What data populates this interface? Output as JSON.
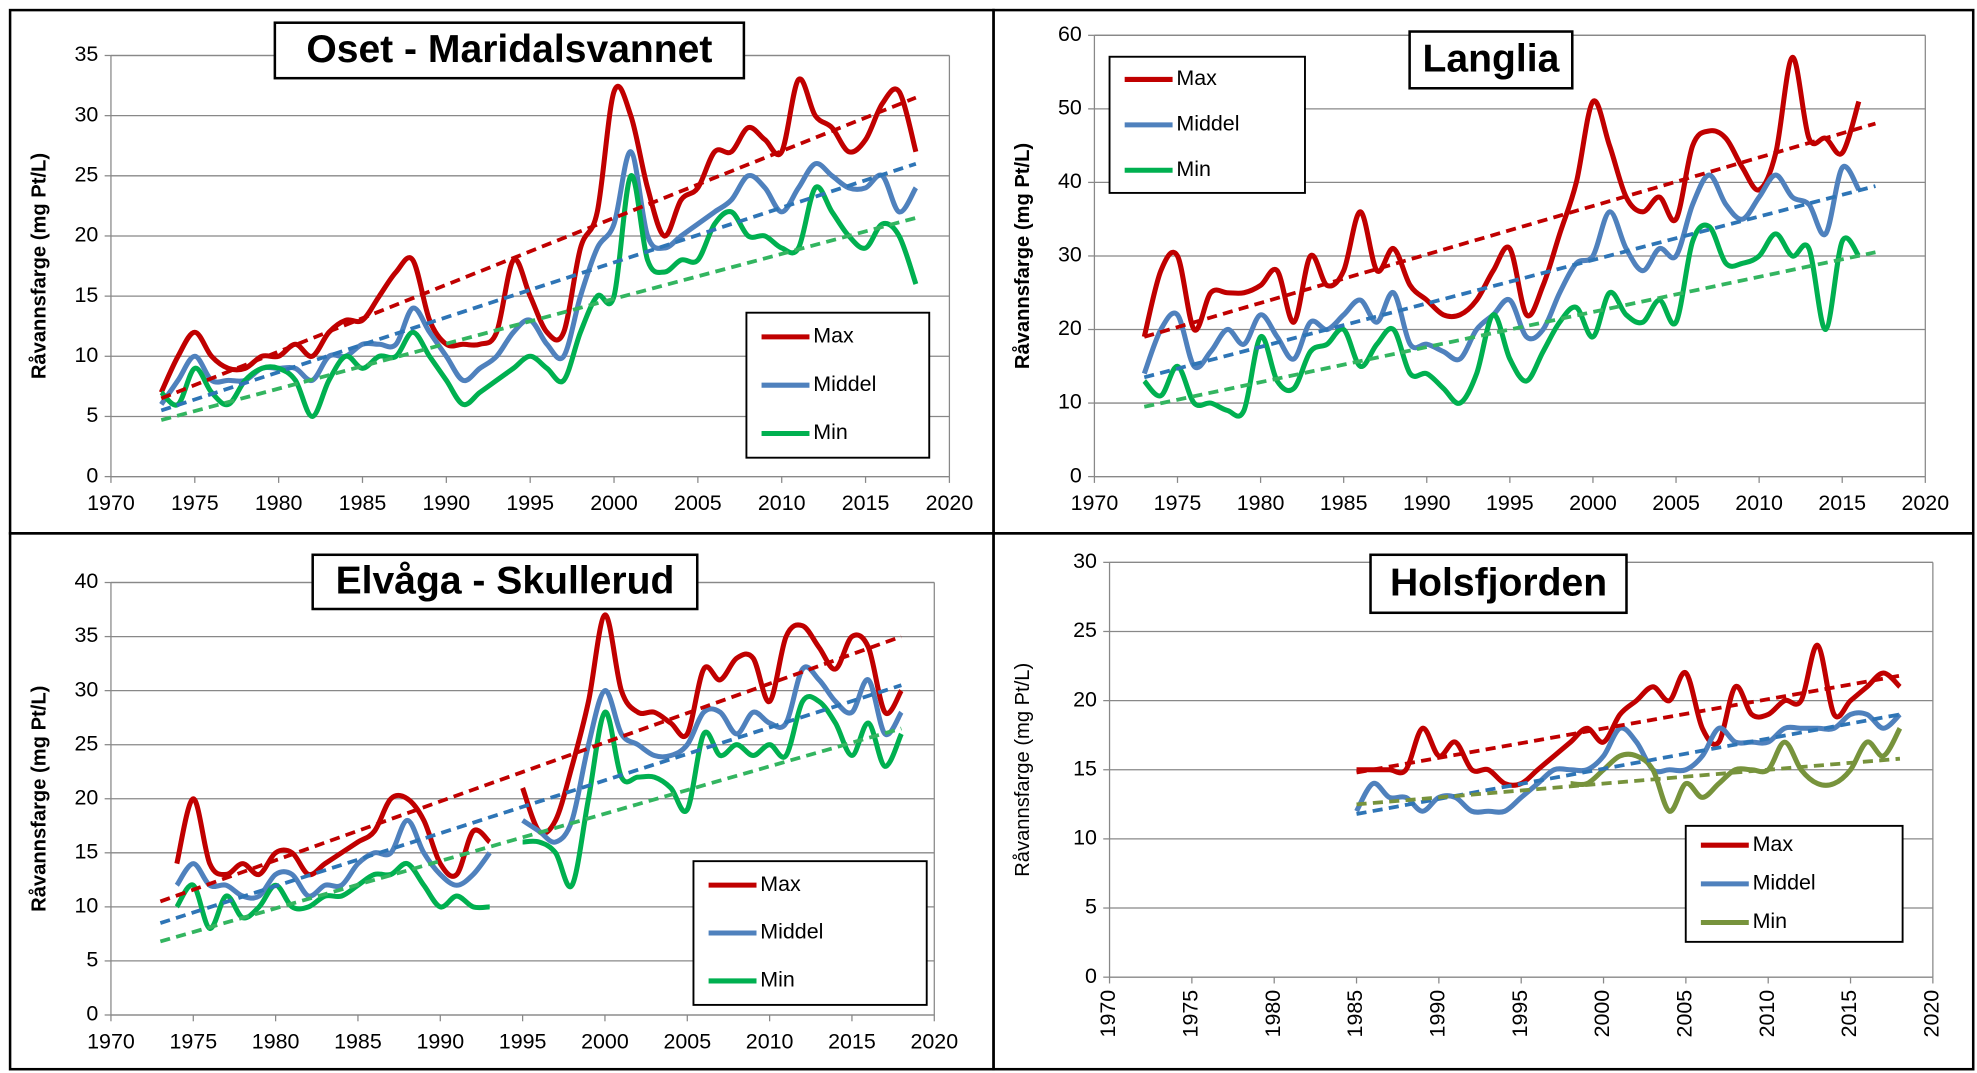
{
  "chart_data": [
    {
      "type": "line",
      "title": "Oset - Maridalsvannet",
      "y_label": "Råvannsfarge (mg Pt/L)",
      "x": [
        1973,
        1974,
        1975,
        1976,
        1977,
        1978,
        1979,
        1980,
        1981,
        1982,
        1983,
        1984,
        1985,
        1986,
        1987,
        1988,
        1989,
        1990,
        1991,
        1992,
        1993,
        1994,
        1995,
        1996,
        1997,
        1998,
        1999,
        2000,
        2001,
        2002,
        2003,
        2004,
        2005,
        2006,
        2007,
        2008,
        2009,
        2010,
        2011,
        2012,
        2013,
        2014,
        2015,
        2016,
        2017,
        2018
      ],
      "series": [
        {
          "name": "Max",
          "color": "#c00000",
          "values": [
            7,
            10,
            12,
            10,
            9,
            9,
            10,
            10,
            11,
            10,
            12,
            13,
            13,
            15,
            17,
            18,
            13,
            11,
            11,
            11,
            12,
            18,
            15,
            12,
            12,
            19,
            22,
            32,
            30,
            24,
            20,
            23,
            24,
            27,
            27,
            29,
            28,
            27,
            33,
            30,
            29,
            27,
            28,
            31,
            32,
            27
          ]
        },
        {
          "name": "Middel",
          "color": "#4f81bd",
          "values": [
            6,
            8,
            10,
            8,
            8,
            8,
            9,
            9,
            9,
            8,
            10,
            10,
            11,
            11,
            11,
            14,
            12,
            10,
            8,
            9,
            10,
            12,
            13,
            11,
            10,
            15,
            19,
            21,
            27,
            20,
            19,
            20,
            21,
            22,
            23,
            25,
            24,
            22,
            24,
            26,
            25,
            24,
            24,
            25,
            22,
            24
          ]
        },
        {
          "name": "Min",
          "color": "#00b050",
          "values": [
            7,
            6,
            9,
            7,
            6,
            8,
            9,
            9,
            8,
            5,
            8,
            10,
            9,
            10,
            10,
            12,
            10,
            8,
            6,
            7,
            8,
            9,
            10,
            9,
            8,
            12,
            15,
            15,
            25,
            18,
            17,
            18,
            18,
            21,
            22,
            20,
            20,
            19,
            19,
            24,
            22,
            20,
            19,
            21,
            20,
            16
          ]
        }
      ],
      "trends": [
        {
          "color": "#c00000",
          "x": [
            1973,
            2018
          ],
          "values": [
            6.5,
            31.5
          ]
        },
        {
          "color": "#2e75b6",
          "x": [
            1973,
            2018
          ],
          "values": [
            5.5,
            26
          ]
        },
        {
          "color": "#33b560",
          "x": [
            1973,
            2018
          ],
          "values": [
            4.7,
            21.5
          ]
        }
      ],
      "xlim": [
        1970,
        2020
      ],
      "xticks": [
        1970,
        1975,
        1980,
        1985,
        1990,
        1995,
        2000,
        2005,
        2010,
        2015,
        2020
      ],
      "ylim": [
        0,
        35
      ],
      "yticks": [
        0,
        5,
        10,
        15,
        20,
        25,
        30,
        35
      ],
      "grid": true,
      "legend": "lower right"
    },
    {
      "type": "line",
      "title": "Langlia",
      "y_label": "Råvannsfarge (mg Pt/L)",
      "x": [
        1973,
        1974,
        1975,
        1976,
        1977,
        1978,
        1979,
        1980,
        1981,
        1982,
        1983,
        1984,
        1985,
        1986,
        1987,
        1988,
        1989,
        1990,
        1991,
        1992,
        1993,
        1994,
        1995,
        1996,
        1997,
        1998,
        1999,
        2000,
        2001,
        2002,
        2003,
        2004,
        2005,
        2006,
        2007,
        2008,
        2009,
        2010,
        2011,
        2012,
        2013,
        2014,
        2015,
        2016
      ],
      "series": [
        {
          "name": "Max",
          "color": "#c00000",
          "values": [
            19,
            28,
            30,
            20,
            25,
            25,
            25,
            26,
            28,
            21,
            30,
            26,
            28,
            36,
            28,
            31,
            26,
            24,
            22,
            22,
            24,
            28,
            31,
            22,
            26,
            33,
            40,
            51,
            45,
            38,
            36,
            38,
            35,
            45,
            47,
            46,
            42,
            39,
            44,
            57,
            46,
            46,
            44,
            51
          ]
        },
        {
          "name": "Middel",
          "color": "#4f81bd",
          "values": [
            14,
            20,
            22,
            15,
            17,
            20,
            18,
            22,
            19,
            16,
            21,
            20,
            22,
            24,
            21,
            25,
            18,
            18,
            17,
            16,
            20,
            22,
            24,
            19,
            20,
            25,
            29,
            30,
            36,
            31,
            28,
            31,
            30,
            37,
            41,
            37,
            35,
            38,
            41,
            38,
            37,
            33,
            42,
            39
          ]
        },
        {
          "name": "Min",
          "color": "#00b050",
          "values": [
            13,
            11,
            15,
            10,
            10,
            9,
            9,
            19,
            13,
            12,
            17,
            18,
            20,
            15,
            18,
            20,
            14,
            14,
            12,
            10,
            14,
            22,
            16,
            13,
            17,
            21,
            23,
            19,
            25,
            22,
            21,
            24,
            21,
            32,
            34,
            29,
            29,
            30,
            33,
            30,
            31,
            20,
            32,
            30
          ]
        }
      ],
      "trends": [
        {
          "color": "#c00000",
          "x": [
            1973,
            2017
          ],
          "values": [
            19,
            48
          ]
        },
        {
          "color": "#2e75b6",
          "x": [
            1973,
            2017
          ],
          "values": [
            13.5,
            39.5
          ]
        },
        {
          "color": "#33b560",
          "x": [
            1973,
            2017
          ],
          "values": [
            9.5,
            30.5
          ]
        }
      ],
      "xlim": [
        1970,
        2020
      ],
      "xticks": [
        1970,
        1975,
        1980,
        1985,
        1990,
        1995,
        2000,
        2005,
        2010,
        2015,
        2020
      ],
      "ylim": [
        0,
        60
      ],
      "yticks": [
        0,
        10,
        20,
        30,
        40,
        50,
        60
      ],
      "grid": true,
      "legend": "upper left"
    },
    {
      "type": "line",
      "title": "Elvåga - Skullerud",
      "y_label": "Råvannsfarge (mg Pt/L)",
      "x": [
        1974,
        1975,
        1976,
        1977,
        1978,
        1979,
        1980,
        1981,
        1982,
        1983,
        1984,
        1985,
        1986,
        1987,
        1988,
        1989,
        1990,
        1991,
        1992,
        1993,
        1994,
        1995,
        1996,
        1997,
        1998,
        1999,
        2000,
        2001,
        2002,
        2003,
        2004,
        2005,
        2006,
        2007,
        2008,
        2009,
        2010,
        2011,
        2012,
        2013,
        2014,
        2015,
        2016,
        2017,
        2018
      ],
      "series": [
        {
          "name": "Max",
          "color": "#c00000",
          "values": [
            14,
            20,
            14,
            13,
            14,
            13,
            15,
            15,
            13,
            14,
            15,
            16,
            17,
            20,
            20,
            18,
            14,
            13,
            17,
            16,
            null,
            21,
            17,
            18,
            23,
            29,
            37,
            30,
            28,
            28,
            27,
            26,
            32,
            31,
            33,
            33,
            29,
            35,
            36,
            34,
            32,
            35,
            34,
            28,
            30
          ]
        },
        {
          "name": "Middel",
          "color": "#4f81bd",
          "values": [
            12,
            14,
            12,
            12,
            11,
            11,
            13,
            13,
            11,
            12,
            12,
            14,
            15,
            15,
            18,
            15,
            13,
            12,
            13,
            15,
            null,
            18,
            17,
            16,
            18,
            25,
            30,
            26,
            25,
            24,
            24,
            25,
            28,
            28,
            26,
            28,
            27,
            27,
            32,
            31,
            29,
            28,
            31,
            26,
            28
          ]
        },
        {
          "name": "Min",
          "color": "#00b050",
          "values": [
            10,
            12,
            8,
            11,
            9,
            10,
            12,
            10,
            10,
            11,
            11,
            12,
            13,
            13,
            14,
            12,
            10,
            11,
            10,
            10,
            null,
            16,
            16,
            15,
            12,
            20,
            28,
            22,
            22,
            22,
            21,
            19,
            26,
            24,
            25,
            24,
            25,
            24,
            29,
            29,
            27,
            24,
            27,
            23,
            26
          ]
        }
      ],
      "trends": [
        {
          "color": "#c00000",
          "x": [
            1973,
            2018
          ],
          "values": [
            10.5,
            35
          ]
        },
        {
          "color": "#2e75b6",
          "x": [
            1973,
            2018
          ],
          "values": [
            8.5,
            30.5
          ]
        },
        {
          "color": "#33b560",
          "x": [
            1973,
            2018
          ],
          "values": [
            6.8,
            26.5
          ]
        }
      ],
      "xlim": [
        1970,
        2020
      ],
      "xticks": [
        1970,
        1975,
        1980,
        1985,
        1990,
        1995,
        2000,
        2005,
        2010,
        2015,
        2020
      ],
      "ylim": [
        0,
        40
      ],
      "yticks": [
        0,
        5,
        10,
        15,
        20,
        25,
        30,
        35,
        40
      ],
      "grid": true,
      "legend": "lower right"
    },
    {
      "type": "line",
      "title": "Holsfjorden",
      "y_label": "Råvannsfarge (mg Pt/L)",
      "x": [
        1985,
        1986,
        1987,
        1988,
        1989,
        1990,
        1991,
        1992,
        1993,
        1994,
        1995,
        1996,
        1997,
        1998,
        1999,
        2000,
        2001,
        2002,
        2003,
        2004,
        2005,
        2006,
        2007,
        2008,
        2009,
        2010,
        2011,
        2012,
        2013,
        2014,
        2015,
        2016,
        2017,
        2018
      ],
      "series": [
        {
          "name": "Max",
          "color": "#c00000",
          "values": [
            15,
            15,
            15,
            15,
            18,
            16,
            17,
            15,
            15,
            14,
            14,
            15,
            16,
            17,
            18,
            17,
            19,
            20,
            21,
            20,
            22,
            18,
            17,
            21,
            19,
            19,
            20,
            20,
            24,
            19,
            20,
            21,
            22,
            21
          ]
        },
        {
          "name": "Middel",
          "color": "#4f81bd",
          "values": [
            12,
            14,
            13,
            13,
            12,
            13,
            13,
            12,
            12,
            12,
            13,
            14,
            15,
            15,
            15,
            16,
            18,
            17,
            15,
            15,
            15,
            16,
            18,
            17,
            17,
            17,
            18,
            18,
            18,
            18,
            19,
            19,
            18,
            19
          ]
        },
        {
          "name": "Min",
          "color": "#77933c",
          "values": [
            null,
            null,
            null,
            null,
            null,
            null,
            null,
            null,
            null,
            null,
            null,
            null,
            null,
            14,
            14,
            15,
            16,
            16,
            15,
            12,
            14,
            13,
            14,
            15,
            15,
            15,
            17,
            15,
            14,
            14,
            15,
            17,
            16,
            18
          ]
        }
      ],
      "trends": [
        {
          "color": "#c00000",
          "x": [
            1985,
            2018
          ],
          "values": [
            14.8,
            21.8
          ]
        },
        {
          "color": "#2e75b6",
          "x": [
            1985,
            2018
          ],
          "values": [
            11.8,
            19
          ]
        },
        {
          "color": "#77933c",
          "x": [
            1985,
            2018
          ],
          "values": [
            12.5,
            15.8
          ]
        }
      ],
      "xlim": [
        1970,
        2020
      ],
      "xticks": [
        1970,
        1975,
        1980,
        1985,
        1990,
        1995,
        2000,
        2005,
        2010,
        2015,
        2020
      ],
      "ylim": [
        0,
        30
      ],
      "yticks": [
        0,
        5,
        10,
        15,
        20,
        25,
        30
      ],
      "grid": true,
      "legend": "lower right",
      "xtick_rotation": 90
    }
  ]
}
